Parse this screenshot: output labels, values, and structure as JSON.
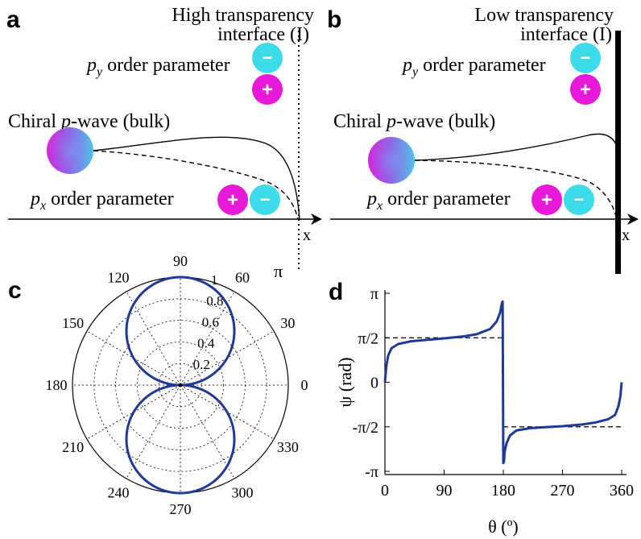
{
  "panels": {
    "a": {
      "letter": "a",
      "title_line1": "High transparency",
      "title_line2": "interface (I)",
      "py_label": "p",
      "py_sub": "y",
      "py_rest": " order parameter",
      "px_label": "p",
      "px_sub": "x",
      "px_rest": " order parameter",
      "bulk_prefix": "Chiral ",
      "bulk_p": "p",
      "bulk_suffix": "-wave (bulk)",
      "axis_label": "x",
      "plus": "+",
      "minus": "−"
    },
    "b": {
      "letter": "b",
      "title_line1": "Low transparency",
      "title_line2": "interface (I)",
      "py_label": "p",
      "py_sub": "y",
      "py_rest": " order parameter",
      "px_label": "p",
      "px_sub": "x",
      "px_rest": " order parameter",
      "bulk_prefix": "Chiral ",
      "bulk_p": "p",
      "bulk_suffix": "-wave (bulk)",
      "axis_label": "x",
      "plus": "+",
      "minus": "−"
    },
    "c": {
      "letter": "c",
      "pi_label": "π"
    },
    "d": {
      "letter": "d"
    }
  },
  "colors": {
    "magenta": "#e619d9",
    "cyan": "#3ddbe8",
    "curve_blue": "#1e3a96"
  },
  "chart_data": [
    {
      "type": "polar",
      "panel": "c",
      "angle_ticks": [
        "0",
        "30",
        "60",
        "90",
        "120",
        "150",
        "180",
        "210",
        "240",
        "270",
        "300",
        "330"
      ],
      "angle_values": [
        0,
        30,
        60,
        90,
        120,
        150,
        180,
        210,
        240,
        270,
        300,
        330
      ],
      "radial_ticks": [
        "0.2",
        "0.4",
        "0.6",
        "0.8",
        "1"
      ],
      "radial_values": [
        0.2,
        0.4,
        0.6,
        0.8,
        1.0
      ],
      "rlim": [
        0,
        1
      ],
      "series": [
        {
          "function": "r = |sin(theta)|",
          "theta_deg": [
            0,
            15,
            30,
            45,
            60,
            75,
            90,
            105,
            120,
            135,
            150,
            165,
            180,
            195,
            210,
            225,
            240,
            255,
            270,
            285,
            300,
            315,
            330,
            345,
            360
          ],
          "r": [
            0,
            0.26,
            0.5,
            0.71,
            0.87,
            0.97,
            1.0,
            0.97,
            0.87,
            0.71,
            0.5,
            0.26,
            0,
            0.26,
            0.5,
            0.71,
            0.87,
            0.97,
            1.0,
            0.97,
            0.87,
            0.71,
            0.5,
            0.26,
            0
          ]
        }
      ],
      "grid": true
    },
    {
      "type": "line",
      "panel": "d",
      "xlabel": "θ (º)",
      "ylabel": "ψ (rad)",
      "xlim": [
        0,
        360
      ],
      "ylim": [
        -3.1416,
        3.1416
      ],
      "x_ticks": [
        "0",
        "90",
        "180",
        "270",
        "360"
      ],
      "x_tick_values": [
        0,
        90,
        180,
        270,
        360
      ],
      "y_ticks": [
        "π",
        "π/2",
        "0",
        "-π/2",
        "-π"
      ],
      "y_tick_values": [
        3.1416,
        1.5708,
        0,
        -1.5708,
        -3.1416
      ],
      "series": [
        {
          "x": [
            0,
            2,
            5,
            10,
            20,
            40,
            60,
            90,
            120,
            140,
            160,
            170,
            175,
            178,
            179,
            180,
            181,
            182,
            185,
            190,
            200,
            220,
            240,
            270,
            300,
            320,
            340,
            350,
            355,
            358,
            360
          ],
          "y": [
            0,
            0.55,
            0.95,
            1.2,
            1.35,
            1.45,
            1.49,
            1.55,
            1.62,
            1.7,
            1.88,
            2.15,
            2.45,
            2.8,
            2.85,
            -2.85,
            -2.8,
            -2.45,
            -2.15,
            -1.88,
            -1.7,
            -1.62,
            -1.59,
            -1.55,
            -1.49,
            -1.42,
            -1.3,
            -1.15,
            -0.85,
            -0.5,
            0
          ]
        }
      ],
      "reference_lines": [
        {
          "y": 1.5708,
          "x_range": [
            0,
            180
          ],
          "style": "dashed"
        },
        {
          "y": -1.5708,
          "x_range": [
            180,
            360
          ],
          "style": "dashed"
        }
      ]
    }
  ]
}
